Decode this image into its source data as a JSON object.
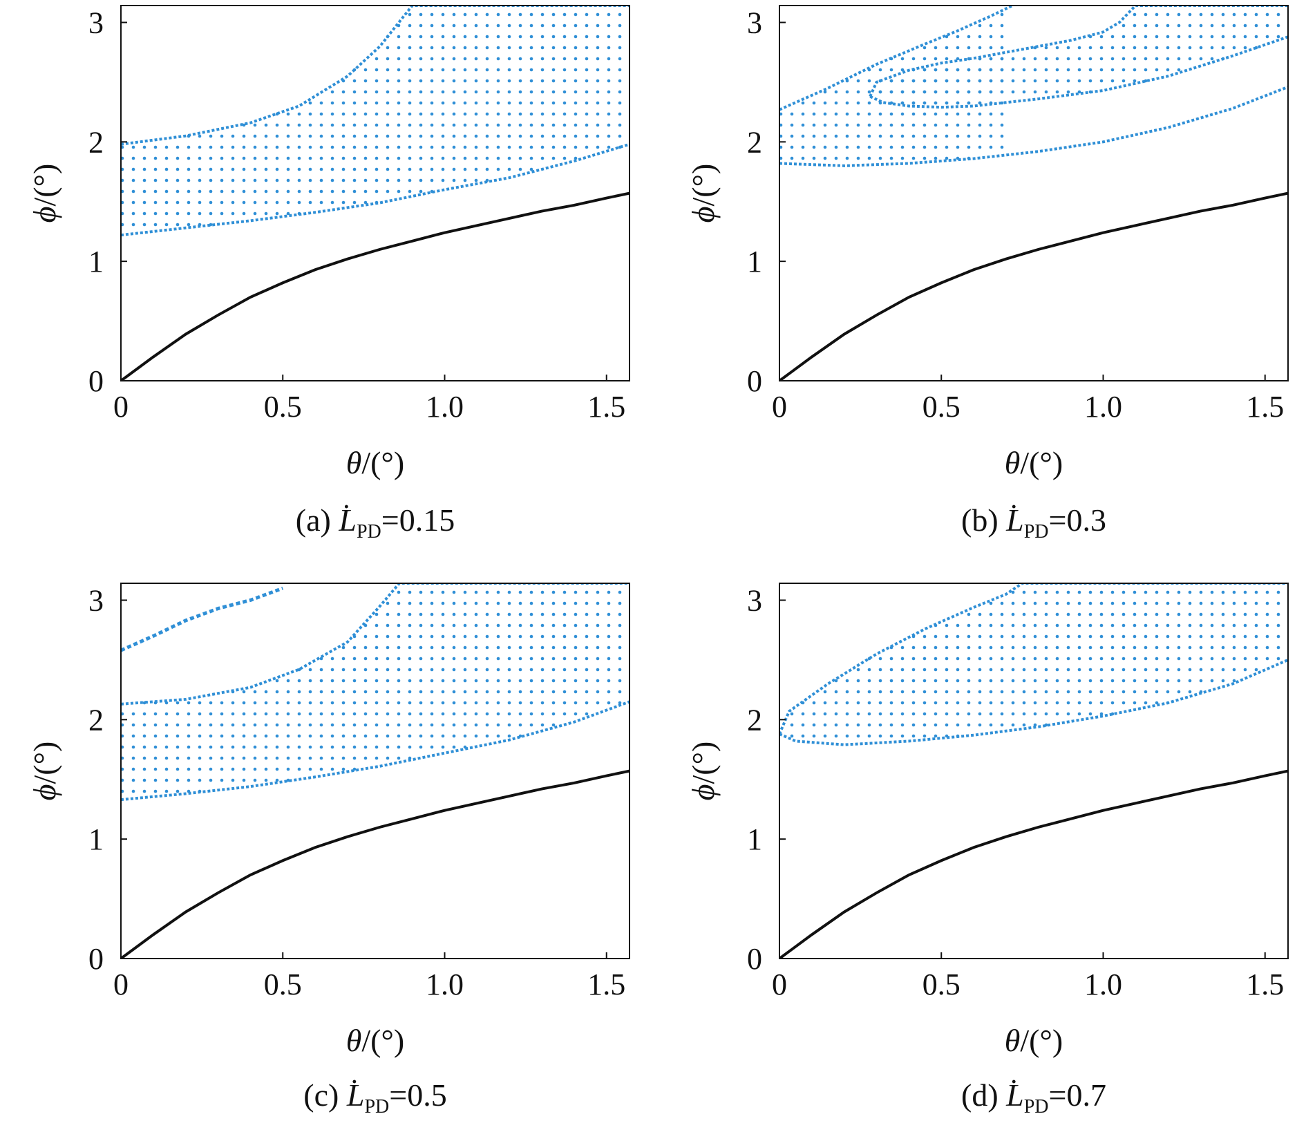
{
  "chart_data": [
    {
      "type": "scatter",
      "panel": "a",
      "caption": {
        "prefix": "(a) ",
        "symbol": "L",
        "subscript": "PD",
        "suffix": "=0.15"
      },
      "xlabel": {
        "symbol": "θ",
        "unit": "/(°)"
      },
      "ylabel": {
        "symbol": "ϕ",
        "unit": "/(°)"
      },
      "xlim": [
        0,
        1.571
      ],
      "ylim": [
        0,
        3.1416
      ],
      "xticks": [
        {
          "v": 0,
          "label": "0"
        },
        {
          "v": 0.5,
          "label": "0.5"
        },
        {
          "v": 1.0,
          "label": "1.0"
        },
        {
          "v": 1.5,
          "label": "1.5"
        }
      ],
      "yticks": [
        {
          "v": 0,
          "label": "0"
        },
        {
          "v": 1,
          "label": "1"
        },
        {
          "v": 2,
          "label": "2"
        },
        {
          "v": 3,
          "label": "3"
        }
      ],
      "regions": [
        {
          "name": "shaded region",
          "lower": [
            [
              0,
              1.22
            ],
            [
              0.2,
              1.28
            ],
            [
              0.4,
              1.34
            ],
            [
              0.6,
              1.41
            ],
            [
              0.8,
              1.49
            ],
            [
              1.0,
              1.6
            ],
            [
              1.2,
              1.7
            ],
            [
              1.4,
              1.84
            ],
            [
              1.571,
              1.98
            ]
          ],
          "upper": [
            [
              0,
              1.98
            ],
            [
              0.2,
              2.05
            ],
            [
              0.4,
              2.16
            ],
            [
              0.55,
              2.3
            ],
            [
              0.7,
              2.55
            ],
            [
              0.8,
              2.8
            ],
            [
              0.9,
              3.1416
            ],
            [
              1.571,
              3.1416
            ]
          ]
        }
      ],
      "series": [
        {
          "name": "black curve",
          "color": "#111111",
          "points": [
            [
              0,
              0
            ],
            [
              0.1,
              0.2
            ],
            [
              0.2,
              0.39
            ],
            [
              0.3,
              0.55
            ],
            [
              0.4,
              0.7
            ],
            [
              0.5,
              0.82
            ],
            [
              0.6,
              0.93
            ],
            [
              0.7,
              1.02
            ],
            [
              0.8,
              1.1
            ],
            [
              0.9,
              1.17
            ],
            [
              1.0,
              1.24
            ],
            [
              1.1,
              1.3
            ],
            [
              1.2,
              1.36
            ],
            [
              1.3,
              1.42
            ],
            [
              1.4,
              1.47
            ],
            [
              1.5,
              1.53
            ],
            [
              1.571,
              1.57
            ]
          ]
        }
      ]
    },
    {
      "type": "scatter",
      "panel": "b",
      "caption": {
        "prefix": "(b) ",
        "symbol": "L",
        "subscript": "PD",
        "suffix": "=0.3"
      },
      "xlabel": {
        "symbol": "θ",
        "unit": "/(°)"
      },
      "ylabel": {
        "symbol": "ϕ",
        "unit": "/(°)"
      },
      "xlim": [
        0,
        1.571
      ],
      "ylim": [
        0,
        3.1416
      ],
      "xticks": [
        {
          "v": 0,
          "label": "0"
        },
        {
          "v": 0.5,
          "label": "0.5"
        },
        {
          "v": 1.0,
          "label": "1.0"
        },
        {
          "v": 1.5,
          "label": "1.5"
        }
      ],
      "yticks": [
        {
          "v": 0,
          "label": "0"
        },
        {
          "v": 1,
          "label": "1"
        },
        {
          "v": 2,
          "label": "2"
        },
        {
          "v": 3,
          "label": "3"
        }
      ],
      "regions": [
        {
          "name": "outer band",
          "lower": [
            [
              0,
              1.82
            ],
            [
              0.2,
              1.8
            ],
            [
              0.4,
              1.82
            ],
            [
              0.6,
              1.86
            ],
            [
              0.8,
              1.92
            ],
            [
              1.0,
              2.0
            ],
            [
              1.2,
              2.12
            ],
            [
              1.4,
              2.28
            ],
            [
              1.571,
              2.46
            ]
          ],
          "upper": [
            [
              0,
              2.27
            ],
            [
              0.15,
              2.45
            ],
            [
              0.3,
              2.65
            ],
            [
              0.45,
              2.82
            ],
            [
              0.55,
              2.93
            ],
            [
              0.65,
              3.05
            ],
            [
              0.72,
              3.1416
            ]
          ]
        },
        {
          "name": "right band",
          "lower": [
            [
              0.28,
              2.38
            ],
            [
              0.32,
              2.33
            ],
            [
              0.4,
              2.3
            ],
            [
              0.5,
              2.29
            ],
            [
              0.6,
              2.3
            ],
            [
              0.7,
              2.33
            ],
            [
              0.8,
              2.36
            ],
            [
              1.0,
              2.43
            ],
            [
              1.2,
              2.55
            ],
            [
              1.4,
              2.72
            ],
            [
              1.571,
              2.88
            ]
          ],
          "upper": [
            [
              0.28,
              2.38
            ],
            [
              0.3,
              2.5
            ],
            [
              0.4,
              2.6
            ],
            [
              0.5,
              2.66
            ],
            [
              0.6,
              2.7
            ],
            [
              0.7,
              2.75
            ],
            [
              0.8,
              2.8
            ],
            [
              0.9,
              2.85
            ],
            [
              1.0,
              2.92
            ],
            [
              1.05,
              3.0
            ],
            [
              1.1,
              3.1416
            ],
            [
              1.571,
              3.1416
            ]
          ]
        }
      ],
      "series": [
        {
          "name": "black curve",
          "color": "#111111",
          "points": [
            [
              0,
              0
            ],
            [
              0.1,
              0.2
            ],
            [
              0.2,
              0.39
            ],
            [
              0.3,
              0.55
            ],
            [
              0.4,
              0.7
            ],
            [
              0.5,
              0.82
            ],
            [
              0.6,
              0.93
            ],
            [
              0.7,
              1.02
            ],
            [
              0.8,
              1.1
            ],
            [
              0.9,
              1.17
            ],
            [
              1.0,
              1.24
            ],
            [
              1.1,
              1.3
            ],
            [
              1.2,
              1.36
            ],
            [
              1.3,
              1.42
            ],
            [
              1.4,
              1.47
            ],
            [
              1.5,
              1.53
            ],
            [
              1.571,
              1.57
            ]
          ]
        }
      ]
    },
    {
      "type": "scatter",
      "panel": "c",
      "caption": {
        "prefix": "(c) ",
        "symbol": "L",
        "subscript": "PD",
        "suffix": "=0.5"
      },
      "xlabel": {
        "symbol": "θ",
        "unit": "/(°)"
      },
      "ylabel": {
        "symbol": "ϕ",
        "unit": "/(°)"
      },
      "xlim": [
        0,
        1.571
      ],
      "ylim": [
        0,
        3.1416
      ],
      "xticks": [
        {
          "v": 0,
          "label": "0"
        },
        {
          "v": 0.5,
          "label": "0.5"
        },
        {
          "v": 1.0,
          "label": "1.0"
        },
        {
          "v": 1.5,
          "label": "1.5"
        }
      ],
      "yticks": [
        {
          "v": 0,
          "label": "0"
        },
        {
          "v": 1,
          "label": "1"
        },
        {
          "v": 2,
          "label": "2"
        },
        {
          "v": 3,
          "label": "3"
        }
      ],
      "regions": [
        {
          "name": "shaded region",
          "lower": [
            [
              0,
              1.33
            ],
            [
              0.2,
              1.38
            ],
            [
              0.4,
              1.44
            ],
            [
              0.6,
              1.52
            ],
            [
              0.8,
              1.61
            ],
            [
              1.0,
              1.72
            ],
            [
              1.2,
              1.83
            ],
            [
              1.4,
              1.98
            ],
            [
              1.571,
              2.15
            ]
          ],
          "upper": [
            [
              0,
              2.13
            ],
            [
              0.2,
              2.17
            ],
            [
              0.4,
              2.27
            ],
            [
              0.55,
              2.42
            ],
            [
              0.7,
              2.65
            ],
            [
              0.8,
              2.95
            ],
            [
              0.86,
              3.1416
            ],
            [
              1.571,
              3.1416
            ]
          ]
        }
      ],
      "series": [
        {
          "name": "black curve",
          "color": "#111111",
          "points": [
            [
              0,
              0
            ],
            [
              0.1,
              0.2
            ],
            [
              0.2,
              0.39
            ],
            [
              0.3,
              0.55
            ],
            [
              0.4,
              0.7
            ],
            [
              0.5,
              0.82
            ],
            [
              0.6,
              0.93
            ],
            [
              0.7,
              1.02
            ],
            [
              0.8,
              1.1
            ],
            [
              0.9,
              1.17
            ],
            [
              1.0,
              1.24
            ],
            [
              1.1,
              1.3
            ],
            [
              1.2,
              1.36
            ],
            [
              1.3,
              1.42
            ],
            [
              1.4,
              1.47
            ],
            [
              1.5,
              1.53
            ],
            [
              1.571,
              1.57
            ]
          ]
        },
        {
          "name": "blue fragment",
          "color": "#2f8fd6",
          "points": [
            [
              0,
              2.58
            ],
            [
              0.1,
              2.7
            ],
            [
              0.2,
              2.83
            ],
            [
              0.3,
              2.93
            ],
            [
              0.4,
              3.0
            ],
            [
              0.5,
              3.1
            ]
          ]
        }
      ]
    },
    {
      "type": "scatter",
      "panel": "d",
      "caption": {
        "prefix": "(d) ",
        "symbol": "L",
        "subscript": "PD",
        "suffix": "=0.7"
      },
      "xlabel": {
        "symbol": "θ",
        "unit": "/(°)"
      },
      "ylabel": {
        "symbol": "ϕ",
        "unit": "/(°)"
      },
      "xlim": [
        0,
        1.571
      ],
      "ylim": [
        0,
        3.1416
      ],
      "xticks": [
        {
          "v": 0,
          "label": "0"
        },
        {
          "v": 0.5,
          "label": "0.5"
        },
        {
          "v": 1.0,
          "label": "1.0"
        },
        {
          "v": 1.5,
          "label": "1.5"
        }
      ],
      "yticks": [
        {
          "v": 0,
          "label": "0"
        },
        {
          "v": 1,
          "label": "1"
        },
        {
          "v": 2,
          "label": "2"
        },
        {
          "v": 3,
          "label": "3"
        }
      ],
      "regions": [
        {
          "name": "shaded region",
          "lower": [
            [
              0,
              1.88
            ],
            [
              0.05,
              1.82
            ],
            [
              0.2,
              1.79
            ],
            [
              0.4,
              1.82
            ],
            [
              0.6,
              1.87
            ],
            [
              0.8,
              1.94
            ],
            [
              1.0,
              2.03
            ],
            [
              1.2,
              2.14
            ],
            [
              1.4,
              2.3
            ],
            [
              1.571,
              2.5
            ]
          ],
          "upper": [
            [
              0,
              1.88
            ],
            [
              0.03,
              2.07
            ],
            [
              0.15,
              2.3
            ],
            [
              0.3,
              2.55
            ],
            [
              0.45,
              2.76
            ],
            [
              0.6,
              2.94
            ],
            [
              0.7,
              3.05
            ],
            [
              0.75,
              3.1416
            ],
            [
              1.571,
              3.1416
            ]
          ]
        }
      ],
      "series": [
        {
          "name": "black curve",
          "color": "#111111",
          "points": [
            [
              0,
              0
            ],
            [
              0.1,
              0.2
            ],
            [
              0.2,
              0.39
            ],
            [
              0.3,
              0.55
            ],
            [
              0.4,
              0.7
            ],
            [
              0.5,
              0.82
            ],
            [
              0.6,
              0.93
            ],
            [
              0.7,
              1.02
            ],
            [
              0.8,
              1.1
            ],
            [
              0.9,
              1.17
            ],
            [
              1.0,
              1.24
            ],
            [
              1.1,
              1.3
            ],
            [
              1.2,
              1.36
            ],
            [
              1.3,
              1.42
            ],
            [
              1.4,
              1.47
            ],
            [
              1.5,
              1.53
            ],
            [
              1.571,
              1.57
            ]
          ]
        }
      ]
    }
  ],
  "colors": {
    "region": "#2f8fd6",
    "curve": "#111111",
    "axis": "#111111"
  }
}
